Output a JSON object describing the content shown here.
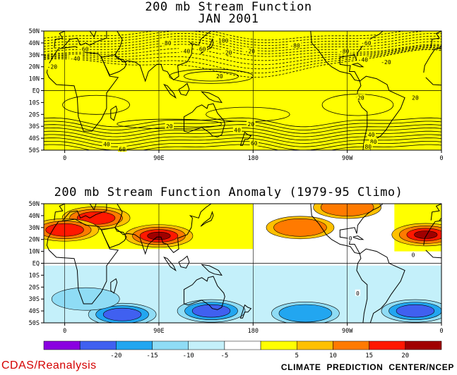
{
  "chart_data": [
    {
      "type": "contour-map",
      "title": "200 mb Stream Function",
      "subtitle": "JAN 2001",
      "fill_color": "#ffff00",
      "lat_ticks": [
        "50N",
        "40N",
        "30N",
        "20N",
        "10N",
        "EQ",
        "10S",
        "20S",
        "30S",
        "40S",
        "50S"
      ],
      "lon_ticks": [
        "0",
        "90E",
        "180",
        "90W",
        "0"
      ],
      "contour_labels": [
        {
          "text": "-80",
          "lon": 97,
          "lat": 40
        },
        {
          "text": "-100",
          "lon": 150,
          "lat": 42
        },
        {
          "text": "-60",
          "lon": 130,
          "lat": 35
        },
        {
          "text": "-40",
          "lon": 115,
          "lat": 33
        },
        {
          "text": "-20",
          "lon": 155,
          "lat": 32
        },
        {
          "text": "-20",
          "lon": 177,
          "lat": 33
        },
        {
          "text": "-60",
          "lon": 18,
          "lat": 35
        },
        {
          "text": "-40",
          "lon": 10,
          "lat": 27
        },
        {
          "text": "-20",
          "lon": -12,
          "lat": 20
        },
        {
          "text": "-80",
          "lon": 220,
          "lat": 38
        },
        {
          "text": "-60",
          "lon": 288,
          "lat": 40
        },
        {
          "text": "-80",
          "lon": 267,
          "lat": 33
        },
        {
          "text": "-40",
          "lon": 285,
          "lat": 26
        },
        {
          "text": "-20",
          "lon": 307,
          "lat": 24
        },
        {
          "text": "20",
          "lon": 148,
          "lat": 12
        },
        {
          "text": "20",
          "lon": 283,
          "lat": -6
        },
        {
          "text": "20",
          "lon": 335,
          "lat": -6
        },
        {
          "text": "20",
          "lon": 100,
          "lat": -30
        },
        {
          "text": "40",
          "lon": 40,
          "lat": -45
        },
        {
          "text": "60",
          "lon": 55,
          "lat": -49
        },
        {
          "text": "40",
          "lon": 165,
          "lat": -33
        },
        {
          "text": "20",
          "lon": 178,
          "lat": -28
        },
        {
          "text": "60",
          "lon": 181,
          "lat": -44
        },
        {
          "text": "40",
          "lon": 293,
          "lat": -37
        },
        {
          "text": "80",
          "lon": 295,
          "lat": -43
        },
        {
          "text": "80",
          "lon": 290,
          "lat": -47
        }
      ]
    },
    {
      "type": "heatmap",
      "title": "200 mb Stream Function Anomaly (1979-95 Climo)",
      "lat_ticks": [
        "50N",
        "40N",
        "30N",
        "20N",
        "10N",
        "EQ",
        "10S",
        "20S",
        "30S",
        "40S",
        "50S"
      ],
      "lon_ticks": [
        "0",
        "90E",
        "180",
        "90W",
        "0"
      ],
      "contour_labels": [
        {
          "text": "0",
          "lon": 273,
          "lat": 21
        },
        {
          "text": "0",
          "lon": 333,
          "lat": 7
        },
        {
          "text": "0",
          "lon": 280,
          "lat": -25
        }
      ],
      "anomaly_centers": [
        {
          "lon": 90,
          "lat": 23,
          "value": 22
        },
        {
          "lon": 345,
          "lat": 24,
          "value": 20
        },
        {
          "lon": 30,
          "lat": 38,
          "value": 17
        },
        {
          "lon": 0,
          "lat": 28,
          "value": 16
        },
        {
          "lon": 270,
          "lat": 47,
          "value": 12
        },
        {
          "lon": 225,
          "lat": 30,
          "value": 11
        },
        {
          "lon": 55,
          "lat": -43,
          "value": -19
        },
        {
          "lon": 140,
          "lat": -40,
          "value": -18
        },
        {
          "lon": 335,
          "lat": -40,
          "value": -16
        },
        {
          "lon": 230,
          "lat": -42,
          "value": -13
        },
        {
          "lon": 20,
          "lat": -30,
          "value": -8
        }
      ],
      "colorbar": {
        "levels": [
          "-20",
          "-15",
          "-10",
          "-5",
          "5",
          "10",
          "15",
          "20"
        ],
        "colors": [
          "#8a00e0",
          "#4060f0",
          "#22a6f0",
          "#8fdcf5",
          "#c4f0fa",
          "#ffffff",
          "#ffff00",
          "#ffc000",
          "#ff7a00",
          "#ff1800",
          "#a00000"
        ]
      }
    }
  ],
  "footer": {
    "left": "CDAS/Reanalysis",
    "right": "CLIMATE PREDICTION CENTER/NCEP"
  }
}
